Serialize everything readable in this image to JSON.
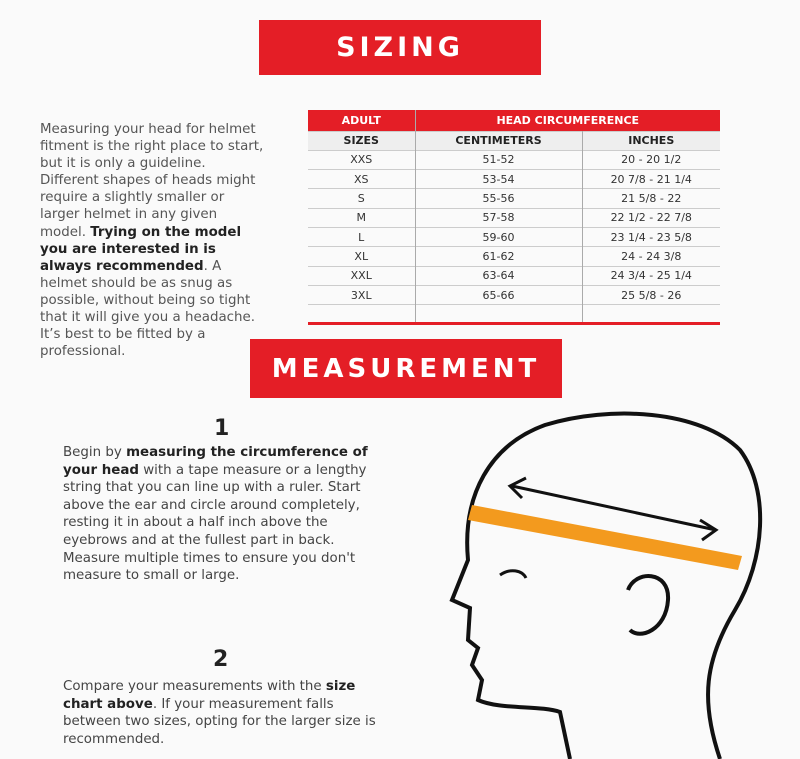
{
  "sizing_title": "SIZING",
  "measurement_title": "MEASUREMENT",
  "intro": {
    "p1": "Measuring your head for helmet fitment is the right place to start, but it is only a guideline. Different shapes of heads might require a slightly smaller or larger helmet in any given model. ",
    "bold": "Trying on the model you are interested in is always recommended",
    "p2": ". A helmet should be as snug as possible, without being so tight that it will give you a headache. It’s best to be fitted by a professional."
  },
  "table": {
    "header_left": "ADULT",
    "header_right": "HEAD CIRCUMFERENCE",
    "columns": [
      "SIZES",
      "CENTIMETERS",
      "INCHES"
    ],
    "rows": [
      [
        "XXS",
        "51-52",
        "20 - 20 1/2"
      ],
      [
        "XS",
        "53-54",
        "20 7/8 - 21 1/4"
      ],
      [
        "S",
        "55-56",
        "21 5/8 - 22"
      ],
      [
        "M",
        "57-58",
        "22 1/2 - 22 7/8"
      ],
      [
        "L",
        "59-60",
        "23 1/4 - 23 5/8"
      ],
      [
        "XL",
        "61-62",
        "24 - 24 3/8"
      ],
      [
        "XXL",
        "63-64",
        "24 3/4 - 25 1/4"
      ],
      [
        "3XL",
        "65-66",
        "25 5/8 - 26"
      ]
    ]
  },
  "step1": {
    "number": "1",
    "t1": "Begin by ",
    "bold": "measuring the circumference of your head",
    "t2": " with a tape measure or a lengthy string that you can line up with a ruler. Start above the ear and circle around completely, resting it in about a half inch above the eyebrows and at the fullest part in back. Measure multiple times to ensure you don't measure to small or large."
  },
  "step2": {
    "number": "2",
    "t1": "Compare your measurements with the ",
    "bold": "size chart above",
    "t2": ". If your measurement falls between two sizes, opting for the larger size is recommended."
  },
  "colors": {
    "accent": "#e41e26",
    "tape": "#f39a1e"
  }
}
